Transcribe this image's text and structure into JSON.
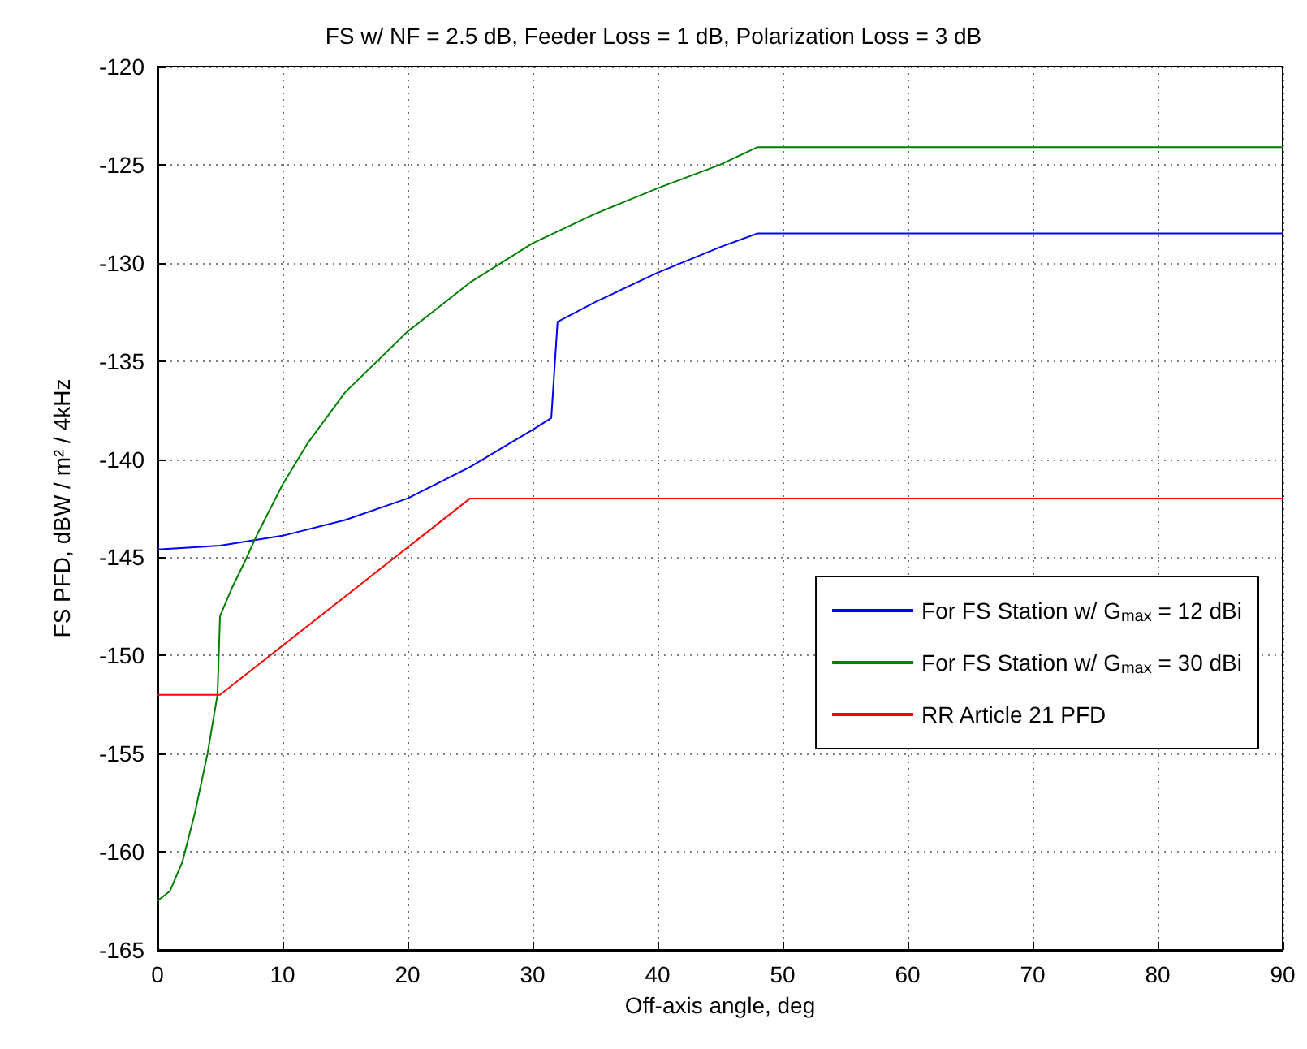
{
  "chart_data": {
    "type": "line",
    "title": "FS w/ NF = 2.5 dB, Feeder Loss = 1 dB, Polarization Loss = 3 dB",
    "xlabel": "Off-axis angle, deg",
    "ylabel": "FS PFD, dBW / m² / 4kHz",
    "xlim": [
      0,
      90
    ],
    "xticks": [
      0,
      10,
      20,
      30,
      40,
      50,
      60,
      70,
      80,
      90
    ],
    "ylim": [
      -165,
      -120
    ],
    "yticks": [
      -165,
      -160,
      -155,
      -150,
      -145,
      -140,
      -135,
      -130,
      -125,
      -120
    ],
    "grid": true,
    "legend": "right",
    "series": [
      {
        "name": "For FS Station w/ G$_{max}$ = 12 dBi",
        "color": "#0000ff",
        "x": [
          0,
          5,
          10,
          15,
          20,
          25,
          30,
          31.5,
          32,
          35,
          40,
          45,
          48,
          90
        ],
        "values": [
          -144.6,
          -144.4,
          -143.9,
          -143.1,
          -142,
          -140.4,
          -138.5,
          -137.9,
          -133,
          -132,
          -130.5,
          -129.2,
          -128.5,
          -128.5
        ]
      },
      {
        "name": "For FS Station w/ G$_{max}$ = 30 dBi",
        "color": "#008000",
        "x": [
          0,
          1,
          2,
          3,
          4,
          4.8,
          5,
          6,
          7,
          8,
          10,
          12,
          15,
          20,
          25,
          30,
          35,
          40,
          45,
          48,
          90
        ],
        "values": [
          -162.5,
          -162,
          -160.5,
          -158,
          -155,
          -152,
          -148,
          -146.5,
          -145.2,
          -143.8,
          -141.3,
          -139.2,
          -136.6,
          -133.5,
          -131,
          -129,
          -127.5,
          -126.2,
          -125,
          -124.1,
          -124.1
        ]
      },
      {
        "name": "RR Article 21 PFD",
        "color": "#ff0000",
        "x": [
          0,
          5,
          25,
          90
        ],
        "values": [
          -152,
          -152,
          -142,
          -142
        ]
      }
    ]
  }
}
